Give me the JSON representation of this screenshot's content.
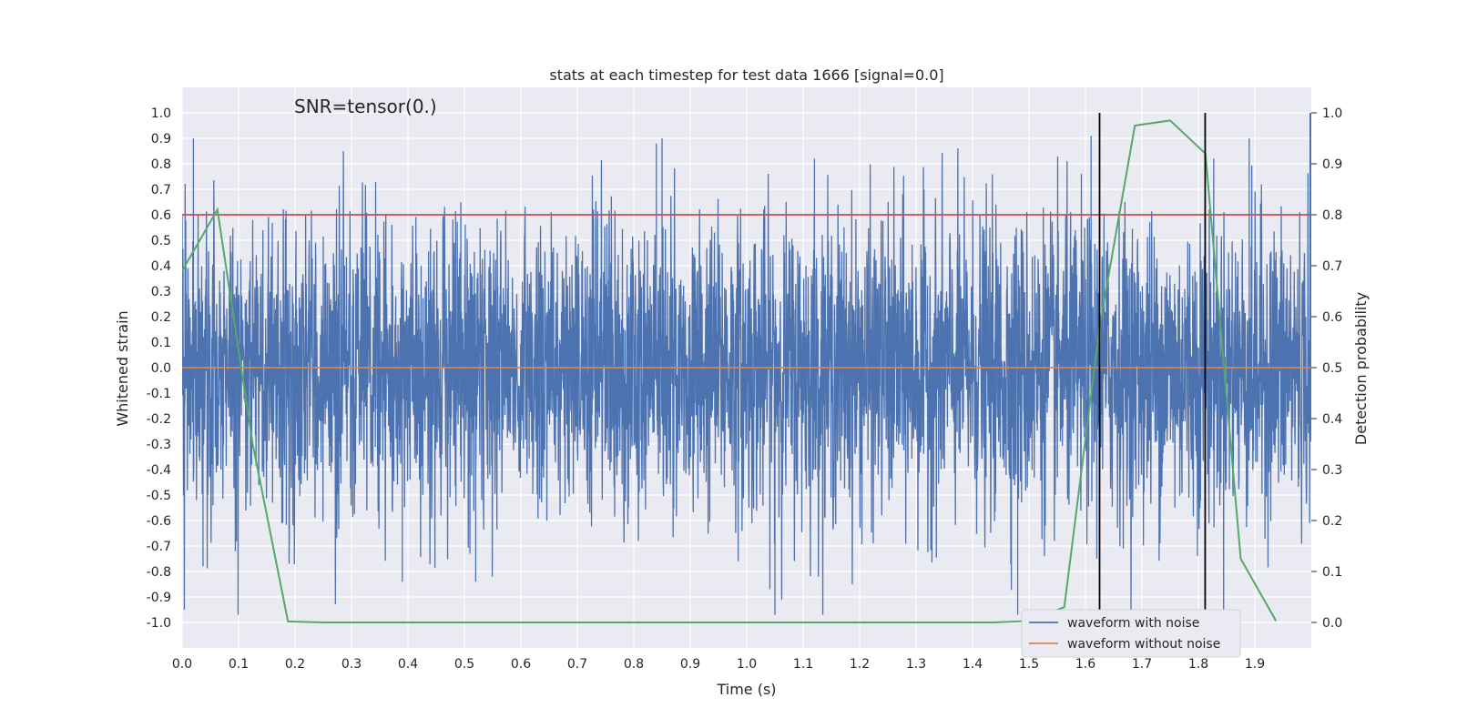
{
  "chart_data": {
    "type": "line",
    "title": "stats at each timestep for test data 1666 [signal=0.0]",
    "annotation": "SNR=tensor(0.)",
    "xlabel": "Time (s)",
    "ylabel": "Whitened strain",
    "y2label": "Detection probability",
    "xlim": [
      0.0,
      2.0
    ],
    "ylim": [
      -1.1,
      1.1
    ],
    "y2lim": [
      -0.05,
      1.05
    ],
    "xticks": [
      "0.0",
      "0.1",
      "0.2",
      "0.3",
      "0.4",
      "0.5",
      "0.6",
      "0.7",
      "0.8",
      "0.9",
      "1.0",
      "1.1",
      "1.2",
      "1.3",
      "1.4",
      "1.5",
      "1.6",
      "1.7",
      "1.8",
      "1.9"
    ],
    "yticks": [
      "1.0",
      "0.9",
      "0.8",
      "0.7",
      "0.6",
      "0.5",
      "0.4",
      "0.3",
      "0.2",
      "0.1",
      "0.0",
      "-0.1",
      "-0.2",
      "-0.3",
      "-0.4",
      "-0.5",
      "-0.6",
      "-0.7",
      "-0.8",
      "-0.9",
      "-1.0"
    ],
    "y2ticks": [
      "1.0",
      "0.9",
      "0.8",
      "0.7",
      "0.6",
      "0.5",
      "0.4",
      "0.3",
      "0.2",
      "0.1",
      "0.0"
    ],
    "threshold": 0.8,
    "vlines": [
      1.625,
      1.812
    ],
    "series": [
      {
        "name": "waveform with noise",
        "color": "#4c72b0",
        "note": "dense noise between -1.0 and 0.9"
      },
      {
        "name": "waveform without noise",
        "color": "#dd8452",
        "values_const": 0.0
      },
      {
        "name": "detection probability",
        "color": "#55a868",
        "axis": "right",
        "x": [
          0.0,
          0.0625,
          0.125,
          0.1875,
          0.25,
          0.3125,
          0.375,
          0.4375,
          0.5,
          0.5625,
          0.625,
          0.6875,
          0.75,
          0.8125,
          0.875,
          0.9375,
          1.0,
          1.0625,
          1.125,
          1.1875,
          1.25,
          1.3125,
          1.375,
          1.4375,
          1.5,
          1.5625,
          1.625,
          1.6875,
          1.75,
          1.8125,
          1.875,
          1.9375
        ],
        "y": [
          0.69,
          0.81,
          0.35,
          0.002,
          0.0,
          0.0,
          0.0,
          0.0,
          0.0,
          0.0,
          0.0,
          0.0,
          0.0,
          0.0,
          0.0,
          0.0,
          0.0,
          0.0,
          0.0,
          0.0,
          0.0,
          0.0,
          0.0,
          0.0,
          0.003,
          0.03,
          0.58,
          0.975,
          0.985,
          0.92,
          0.125,
          0.003
        ]
      }
    ],
    "legend": [
      "waveform with noise",
      "waveform without noise"
    ],
    "legend_position": "lower-right"
  }
}
